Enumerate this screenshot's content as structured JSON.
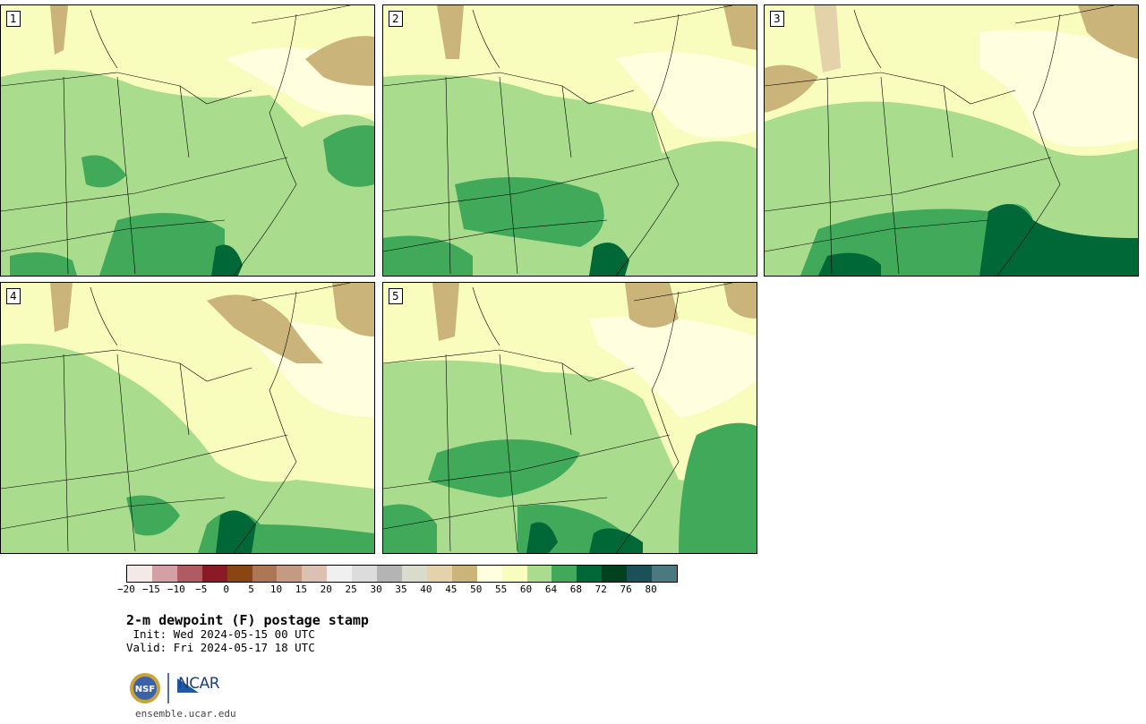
{
  "panels": [
    {
      "label": "1"
    },
    {
      "label": "2"
    },
    {
      "label": "3"
    },
    {
      "label": "4"
    },
    {
      "label": "5"
    }
  ],
  "colorbar": {
    "colors": [
      "#f3e9e9",
      "#d4a0a6",
      "#b05a63",
      "#8a1a25",
      "#8a4515",
      "#ad7756",
      "#c49a83",
      "#dcc1b3",
      "#f0f0f0",
      "#dcdcdc",
      "#b4b4b4",
      "#d9dccb",
      "#e3d2aa",
      "#cbb47a",
      "#fffedf",
      "#f8fcbd",
      "#a9dc8d",
      "#40a95a",
      "#006837",
      "#02411f",
      "#1c5059",
      "#4a7a80"
    ],
    "ticks": [
      "−20",
      "−15",
      "−10",
      "−5",
      "0",
      "5",
      "10",
      "15",
      "20",
      "25",
      "30",
      "35",
      "40",
      "45",
      "50",
      "55",
      "60",
      "64",
      "68",
      "72",
      "76",
      "80"
    ]
  },
  "title": "2-m dewpoint (F) postage stamp",
  "init": " Init: Wed 2024-05-15 00 UTC",
  "valid": "Valid: Fri 2024-05-17 18 UTC",
  "logos": {
    "nsf": "NSF",
    "ncar": "NCAR"
  },
  "url": "ensemble.ucar.edu"
}
